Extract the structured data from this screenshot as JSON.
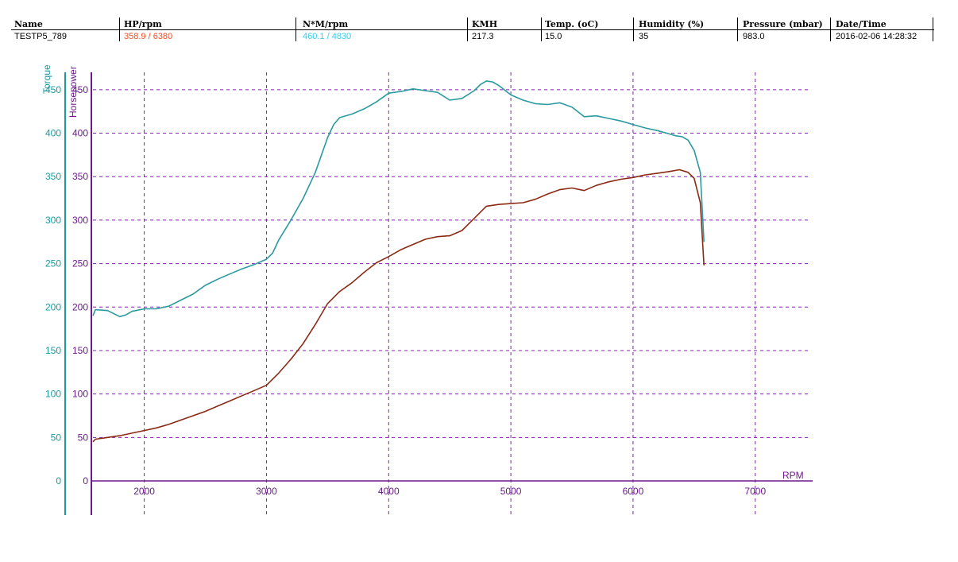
{
  "header": {
    "columns": [
      {
        "name": "Name",
        "value": "TESTP5_789",
        "color": "#000000"
      },
      {
        "name": "HP/rpm",
        "value": "358.9 / 6380",
        "color": "#ff4b1f"
      },
      {
        "name": "N*M/rpm",
        "value": "460.1 / 4830",
        "color": "#33ccee"
      },
      {
        "name": "KMH",
        "value": "217.3",
        "color": "#000000"
      },
      {
        "name": "Temp. (oC)",
        "value": "15.0",
        "color": "#000000"
      },
      {
        "name": "Humidity (%)",
        "value": "35",
        "color": "#000000"
      },
      {
        "name": "Pressure (mbar)",
        "value": "983.0",
        "color": "#000000"
      },
      {
        "name": "Date/Time",
        "value": "2016-02-06 14:28:32",
        "color": "#000000"
      }
    ]
  },
  "chart_data": {
    "type": "line",
    "xlabel": "RPM",
    "torque_axis_label": "Torque",
    "hp_axis_label": "Horsepower",
    "x_ticks": [
      "2000",
      "3000",
      "4000",
      "5000",
      "6000",
      "7000"
    ],
    "y_ticks": [
      "0",
      "50",
      "100",
      "150",
      "200",
      "250",
      "300",
      "350",
      "400",
      "450"
    ],
    "xlim": [
      1580,
      7450
    ],
    "ylim": [
      0,
      470
    ],
    "grid": true,
    "colors": {
      "torque": "#2a9aa0",
      "hp": "#8b2a14",
      "grid": "#8020b0",
      "axis": "#6a1a8a",
      "torque_axis": "#1a9aa0"
    },
    "series": [
      {
        "key": "torque",
        "x": [
          1580,
          1600,
          1700,
          1800,
          1850,
          1900,
          2000,
          2100,
          2200,
          2300,
          2400,
          2500,
          2600,
          2700,
          2800,
          2900,
          3000,
          3050,
          3100,
          3200,
          3300,
          3400,
          3500,
          3550,
          3600,
          3700,
          3800,
          3900,
          4000,
          4100,
          4200,
          4300,
          4400,
          4500,
          4600,
          4700,
          4750,
          4800,
          4850,
          4900,
          5000,
          5100,
          5200,
          5300,
          5400,
          5500,
          5600,
          5700,
          5800,
          5900,
          6000,
          6100,
          6200,
          6300,
          6350,
          6400,
          6450,
          6500,
          6550,
          6580
        ],
        "y": [
          190,
          197,
          196,
          189,
          191,
          195,
          198,
          198,
          201,
          208,
          215,
          225,
          232,
          238,
          244,
          249,
          255,
          262,
          277,
          300,
          325,
          355,
          395,
          410,
          418,
          422,
          428,
          436,
          446,
          448,
          451,
          449,
          447,
          438,
          440,
          449,
          456,
          460,
          459,
          455,
          444,
          438,
          434,
          433,
          435,
          430,
          419,
          420,
          417,
          414,
          410,
          406,
          403,
          399,
          397,
          396,
          392,
          380,
          355,
          275
        ]
      },
      {
        "key": "hp",
        "x": [
          1580,
          1600,
          1700,
          1800,
          1900,
          2000,
          2100,
          2200,
          2300,
          2400,
          2500,
          2600,
          2700,
          2800,
          2900,
          3000,
          3100,
          3200,
          3300,
          3400,
          3500,
          3600,
          3700,
          3800,
          3900,
          4000,
          4100,
          4200,
          4300,
          4400,
          4500,
          4600,
          4700,
          4800,
          4900,
          5000,
          5100,
          5200,
          5300,
          5400,
          5500,
          5600,
          5700,
          5800,
          5900,
          6000,
          6100,
          6200,
          6300,
          6380,
          6450,
          6500,
          6550,
          6580
        ],
        "y": [
          45,
          48,
          50,
          52,
          55,
          58,
          61,
          65,
          70,
          75,
          80,
          86,
          92,
          98,
          104,
          110,
          124,
          140,
          158,
          180,
          204,
          218,
          228,
          240,
          251,
          258,
          266,
          272,
          278,
          281,
          282,
          288,
          302,
          316,
          318,
          319,
          320,
          324,
          330,
          335,
          337,
          334,
          340,
          344,
          347,
          349,
          352,
          354,
          356,
          358,
          355,
          348,
          320,
          248
        ]
      }
    ]
  }
}
